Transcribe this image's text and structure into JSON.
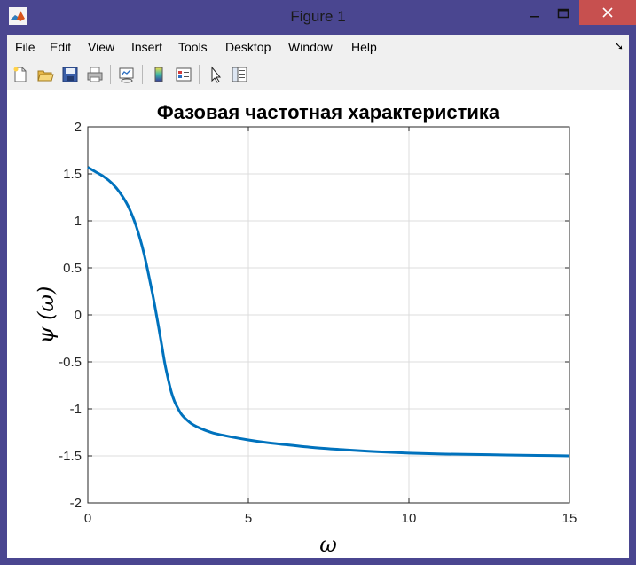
{
  "window": {
    "title": "Figure 1",
    "accent_color": "#4a4690",
    "close_color": "#c7504f"
  },
  "menu": {
    "items": [
      "File",
      "Edit",
      "View",
      "Insert",
      "Tools",
      "Desktop",
      "Window",
      "Help"
    ]
  },
  "toolbar": {
    "icons": [
      "new-figure-icon",
      "open-file-icon",
      "save-icon",
      "print-icon",
      "link-plot-icon",
      "insert-colorbar-icon",
      "insert-legend-icon",
      "edit-plot-icon",
      "open-property-inspector-icon"
    ]
  },
  "chart_data": {
    "type": "line",
    "title": "Фазовая частотная характеристика",
    "xlabel": "ω",
    "ylabel": "ψ (ω)",
    "xlim": [
      0,
      15
    ],
    "ylim": [
      -2,
      2
    ],
    "xticks": [
      "0",
      "5",
      "10",
      "15"
    ],
    "yticks": [
      "2",
      "1.5",
      "1",
      "0.5",
      "0",
      "-0.5",
      "-1",
      "-1.5",
      "-2"
    ],
    "grid": true,
    "series": [
      {
        "color": "#0072bd",
        "x": [
          0,
          0.25,
          0.5,
          0.75,
          1.0,
          1.25,
          1.5,
          1.75,
          2.0,
          2.1,
          2.2,
          2.3,
          2.4,
          2.5,
          2.6,
          2.7,
          2.8,
          2.9,
          3.0,
          3.2,
          3.4,
          3.6,
          3.8,
          4.0,
          4.5,
          5.0,
          5.5,
          6.0,
          7.0,
          8.0,
          9.0,
          10.0,
          11.0,
          12.0,
          13.0,
          14.0,
          15.0
        ],
        "y": [
          1.57,
          1.52,
          1.47,
          1.4,
          1.3,
          1.16,
          0.95,
          0.65,
          0.25,
          0.07,
          -0.12,
          -0.32,
          -0.52,
          -0.68,
          -0.82,
          -0.92,
          -0.99,
          -1.05,
          -1.09,
          -1.15,
          -1.19,
          -1.22,
          -1.245,
          -1.265,
          -1.3,
          -1.33,
          -1.355,
          -1.375,
          -1.41,
          -1.435,
          -1.455,
          -1.47,
          -1.48,
          -1.485,
          -1.49,
          -1.495,
          -1.5
        ]
      }
    ]
  }
}
